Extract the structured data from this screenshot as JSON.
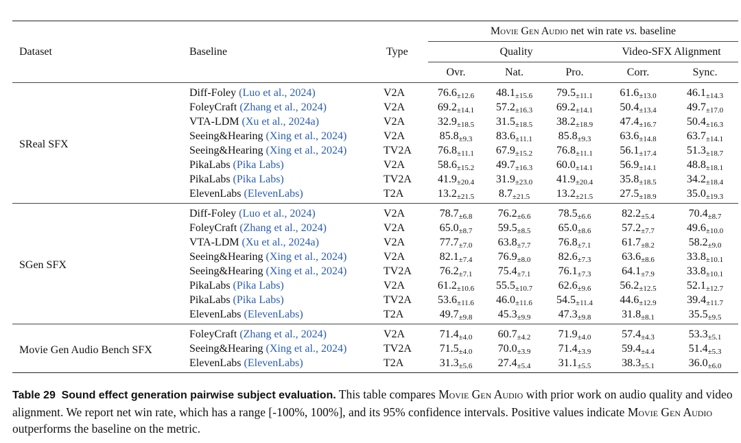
{
  "table": {
    "header": {
      "dataset": "Dataset",
      "baseline": "Baseline",
      "type": "Type",
      "group": [
        "Movie Gen Audio",
        "net win rate",
        "vs.",
        "baseline"
      ],
      "quality": "Quality",
      "alignment": "Video-SFX Alignment",
      "metrics": [
        "Ovr.",
        "Nat.",
        "Pro.",
        "Corr.",
        "Sync."
      ]
    },
    "sections": [
      {
        "dataset": "SReal SFX",
        "rows": [
          {
            "model": "Diff-Foley",
            "cite": "(Luo et al., 2024)",
            "type": "V2A",
            "cells": [
              [
                "76.6",
                "±12.6"
              ],
              [
                "48.1",
                "±15.6"
              ],
              [
                "79.5",
                "±11.1"
              ],
              [
                "61.6",
                "±13.0"
              ],
              [
                "46.1",
                "±14.3"
              ]
            ]
          },
          {
            "model": "FoleyCraft",
            "cite": "(Zhang et al., 2024)",
            "type": "V2A",
            "cells": [
              [
                "69.2",
                "±14.1"
              ],
              [
                "57.2",
                "±16.3"
              ],
              [
                "69.2",
                "±14.1"
              ],
              [
                "50.4",
                "±13.4"
              ],
              [
                "49.7",
                "±17.0"
              ]
            ]
          },
          {
            "model": "VTA-LDM",
            "cite": "(Xu et al., 2024a)",
            "type": "V2A",
            "cells": [
              [
                "32.9",
                "±18.5"
              ],
              [
                "31.5",
                "±18.5"
              ],
              [
                "38.2",
                "±18.9"
              ],
              [
                "47.4",
                "±16.7"
              ],
              [
                "50.4",
                "±16.3"
              ]
            ]
          },
          {
            "model": "Seeing&Hearing",
            "cite": "(Xing et al., 2024)",
            "type": "V2A",
            "cells": [
              [
                "85.8",
                "±9.3"
              ],
              [
                "83.6",
                "±11.1"
              ],
              [
                "85.8",
                "±9.3"
              ],
              [
                "63.6",
                "±14.8"
              ],
              [
                "63.7",
                "±14.1"
              ]
            ]
          },
          {
            "model": "Seeing&Hearing",
            "cite": "(Xing et al., 2024)",
            "type": "TV2A",
            "cells": [
              [
                "76.8",
                "±11.1"
              ],
              [
                "67.9",
                "±15.2"
              ],
              [
                "76.8",
                "±11.1"
              ],
              [
                "56.1",
                "±17.4"
              ],
              [
                "51.3",
                "±18.7"
              ]
            ]
          },
          {
            "model": "PikaLabs",
            "cite": "(Pika Labs)",
            "type": "V2A",
            "cells": [
              [
                "58.6",
                "±15.2"
              ],
              [
                "49.7",
                "±16.3"
              ],
              [
                "60.0",
                "±14.1"
              ],
              [
                "56.9",
                "±14.1"
              ],
              [
                "48.8",
                "±18.1"
              ]
            ]
          },
          {
            "model": "PikaLabs",
            "cite": "(Pika Labs)",
            "type": "TV2A",
            "cells": [
              [
                "41.9",
                "±20.4"
              ],
              [
                "31.9",
                "±23.0"
              ],
              [
                "41.9",
                "±20.4"
              ],
              [
                "35.8",
                "±18.5"
              ],
              [
                "34.2",
                "±18.4"
              ]
            ]
          },
          {
            "model": "ElevenLabs",
            "cite": "(ElevenLabs)",
            "type": "T2A",
            "cells": [
              [
                "13.2",
                "±21.5"
              ],
              [
                "8.7",
                "±21.5"
              ],
              [
                "13.2",
                "±21.5"
              ],
              [
                "27.5",
                "±18.9"
              ],
              [
                "35.0",
                "±19.3"
              ]
            ]
          }
        ]
      },
      {
        "dataset": "SGen SFX",
        "rows": [
          {
            "model": "Diff-Foley",
            "cite": "(Luo et al., 2024)",
            "type": "V2A",
            "cells": [
              [
                "78.7",
                "±6.8"
              ],
              [
                "76.2",
                "±6.6"
              ],
              [
                "78.5",
                "±6.6"
              ],
              [
                "82.2",
                "±5.4"
              ],
              [
                "70.4",
                "±8.7"
              ]
            ]
          },
          {
            "model": "FoleyCraft",
            "cite": "(Zhang et al., 2024)",
            "type": "V2A",
            "cells": [
              [
                "65.0",
                "±8.7"
              ],
              [
                "59.5",
                "±8.5"
              ],
              [
                "65.0",
                "±8.6"
              ],
              [
                "57.2",
                "±7.7"
              ],
              [
                "49.6",
                "±10.0"
              ]
            ]
          },
          {
            "model": "VTA-LDM",
            "cite": "(Xu et al., 2024a)",
            "type": "V2A",
            "cells": [
              [
                "77.7",
                "±7.0"
              ],
              [
                "63.8",
                "±7.7"
              ],
              [
                "76.8",
                "±7.1"
              ],
              [
                "61.7",
                "±8.2"
              ],
              [
                "58.2",
                "±9.0"
              ]
            ]
          },
          {
            "model": "Seeing&Hearing",
            "cite": "(Xing et al., 2024)",
            "type": "V2A",
            "cells": [
              [
                "82.1",
                "±7.4"
              ],
              [
                "76.9",
                "±8.0"
              ],
              [
                "82.6",
                "±7.3"
              ],
              [
                "63.6",
                "±8.6"
              ],
              [
                "33.8",
                "±10.1"
              ]
            ]
          },
          {
            "model": "Seeing&Hearing",
            "cite": "(Xing et al., 2024)",
            "type": "TV2A",
            "cells": [
              [
                "76.2",
                "±7.1"
              ],
              [
                "75.4",
                "±7.1"
              ],
              [
                "76.1",
                "±7.3"
              ],
              [
                "64.1",
                "±7.9"
              ],
              [
                "33.8",
                "±10.1"
              ]
            ]
          },
          {
            "model": "PikaLabs",
            "cite": "(Pika Labs)",
            "type": "V2A",
            "cells": [
              [
                "61.2",
                "±10.6"
              ],
              [
                "55.5",
                "±10.7"
              ],
              [
                "62.6",
                "±9.6"
              ],
              [
                "56.2",
                "±12.5"
              ],
              [
                "52.1",
                "±12.7"
              ]
            ]
          },
          {
            "model": "PikaLabs",
            "cite": "(Pika Labs)",
            "type": "TV2A",
            "cells": [
              [
                "53.6",
                "±11.6"
              ],
              [
                "46.0",
                "±11.6"
              ],
              [
                "54.5",
                "±11.4"
              ],
              [
                "44.6",
                "±12.9"
              ],
              [
                "39.4",
                "±11.7"
              ]
            ]
          },
          {
            "model": "ElevenLabs",
            "cite": "(ElevenLabs)",
            "type": "T2A",
            "cells": [
              [
                "49.7",
                "±9.8"
              ],
              [
                "45.3",
                "±9.9"
              ],
              [
                "47.3",
                "±9.8"
              ],
              [
                "31.8",
                "±8.1"
              ],
              [
                "35.5",
                "±9.5"
              ]
            ]
          }
        ]
      },
      {
        "dataset": "Movie Gen Audio Bench SFX",
        "rows": [
          {
            "model": "FoleyCraft",
            "cite": "(Zhang et al., 2024)",
            "type": "V2A",
            "cells": [
              [
                "71.4",
                "±4.0"
              ],
              [
                "60.7",
                "±4.2"
              ],
              [
                "71.9",
                "±4.0"
              ],
              [
                "57.4",
                "±4.3"
              ],
              [
                "53.3",
                "±5.1"
              ]
            ]
          },
          {
            "model": "Seeing&Hearing",
            "cite": "(Xing et al., 2024)",
            "type": "TV2A",
            "cells": [
              [
                "71.5",
                "±4.0"
              ],
              [
                "70.0",
                "±3.9"
              ],
              [
                "71.4",
                "±3.9"
              ],
              [
                "59.4",
                "±4.4"
              ],
              [
                "51.4",
                "±5.3"
              ]
            ]
          },
          {
            "model": "ElevenLabs",
            "cite": "(ElevenLabs)",
            "type": "T2A",
            "cells": [
              [
                "31.3",
                "±5.6"
              ],
              [
                "27.4",
                "±5.4"
              ],
              [
                "31.1",
                "±5.5"
              ],
              [
                "38.3",
                "±5.1"
              ],
              [
                "36.0",
                "±6.0"
              ]
            ]
          }
        ]
      }
    ]
  },
  "caption": {
    "label": "Table 29",
    "title": "Sound effect generation pairwise subject evaluation.",
    "body": [
      "This table compares",
      "Movie Gen Audio",
      "with prior work on audio quality and video alignment. We report net win rate, which has a range [-100%, 100%], and its 95% confidence intervals. Positive values indicate",
      "Movie Gen Audio",
      "outperforms the baseline on the metric."
    ]
  }
}
